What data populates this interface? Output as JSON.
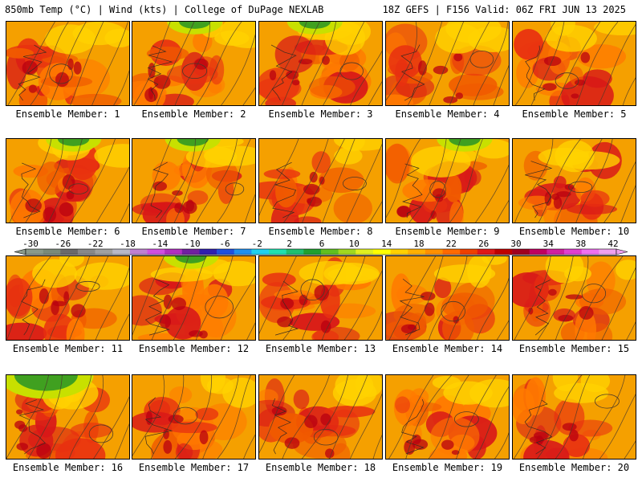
{
  "header": {
    "left": "850mb Temp (°C) | Wind (kts) | College of DuPage NEXLAB",
    "right": "18Z GEFS | F156 Valid: 06Z FRI JUN 13 2025"
  },
  "panels": [
    {
      "label": "Ensemble Member: 1"
    },
    {
      "label": "Ensemble Member: 2"
    },
    {
      "label": "Ensemble Member: 3"
    },
    {
      "label": "Ensemble Member: 4"
    },
    {
      "label": "Ensemble Member: 5"
    },
    {
      "label": "Ensemble Member: 6"
    },
    {
      "label": "Ensemble Member: 7"
    },
    {
      "label": "Ensemble Member: 8"
    },
    {
      "label": "Ensemble Member: 9"
    },
    {
      "label": "Ensemble Member: 10"
    },
    {
      "label": "Ensemble Member: 11"
    },
    {
      "label": "Ensemble Member: 12"
    },
    {
      "label": "Ensemble Member: 13"
    },
    {
      "label": "Ensemble Member: 14"
    },
    {
      "label": "Ensemble Member: 15"
    },
    {
      "label": "Ensemble Member: 16"
    },
    {
      "label": "Ensemble Member: 17"
    },
    {
      "label": "Ensemble Member: 18"
    },
    {
      "label": "Ensemble Member: 19"
    },
    {
      "label": "Ensemble Member: 20"
    }
  ],
  "colorbar": {
    "labels": [
      "-30",
      "-26",
      "-22",
      "-18",
      "-14",
      "-10",
      "-6",
      "-2",
      "2",
      "6",
      "10",
      "14",
      "18",
      "22",
      "26",
      "30",
      "34",
      "38",
      "42"
    ],
    "colors": [
      "#8a9a8a",
      "#7a8a7a",
      "#6a6a6a",
      "#888888",
      "#a0a0a0",
      "#b8b8c8",
      "#c080d0",
      "#d050e0",
      "#b030c0",
      "#7020a0",
      "#3020b0",
      "#2050e0",
      "#2090f0",
      "#20d0f0",
      "#20e0b0",
      "#20c070",
      "#20a030",
      "#60c020",
      "#a0d820",
      "#e0f020",
      "#ffff00",
      "#ffd000",
      "#ffb000",
      "#ff9000",
      "#ff6a00",
      "#f04000",
      "#e01818",
      "#c00000",
      "#a00020",
      "#c00060",
      "#d020a0",
      "#e040d0",
      "#f070f0",
      "#f0a0f0"
    ]
  }
}
